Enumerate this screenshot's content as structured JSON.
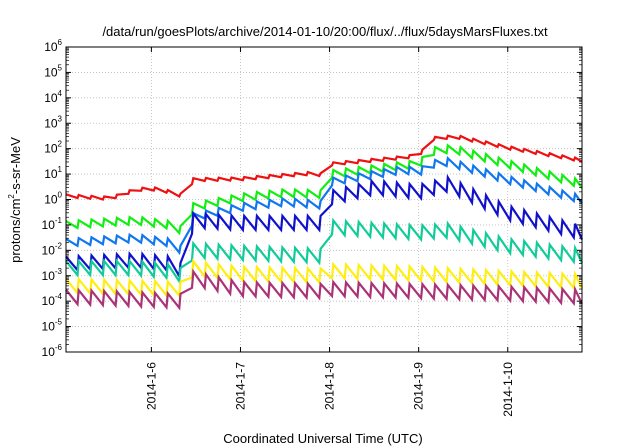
{
  "chart_data": {
    "type": "line",
    "title": "/data/run/goesPlots/archive/2014-01-10/20:00/flux/../flux/5daysMarsFluxes.txt",
    "xlabel": "Coordinated Universal Time (UTC)",
    "ylabel": {
      "base": "protons/cm",
      "exponent": "2",
      "tail": "-s-sr-MeV"
    },
    "y_scale": "log",
    "ylim": [
      1e-06,
      1000000.0
    ],
    "y_ticks": [
      {
        "value": 1e-06,
        "base": "10",
        "exp": "-6"
      },
      {
        "value": 1e-05,
        "base": "10",
        "exp": "-5"
      },
      {
        "value": 0.0001,
        "base": "10",
        "exp": "-4"
      },
      {
        "value": 0.001,
        "base": "10",
        "exp": "-3"
      },
      {
        "value": 0.01,
        "base": "10",
        "exp": "-2"
      },
      {
        "value": 0.1,
        "base": "10",
        "exp": "-1"
      },
      {
        "value": 1,
        "base": "10",
        "exp": "0"
      },
      {
        "value": 10,
        "base": "10",
        "exp": "1"
      },
      {
        "value": 100,
        "base": "10",
        "exp": "2"
      },
      {
        "value": 1000,
        "base": "10",
        "exp": "3"
      },
      {
        "value": 10000.0,
        "base": "10",
        "exp": "4"
      },
      {
        "value": 100000.0,
        "base": "10",
        "exp": "5"
      },
      {
        "value": 1000000.0,
        "base": "10",
        "exp": "6"
      }
    ],
    "xlim": [
      "2014-01-05 01:00",
      "2014-01-10 20:00"
    ],
    "x_ticks": [
      "2014-1-6",
      "2014-1-7",
      "2014-1-8",
      "2014-1-9",
      "2014-1-10"
    ],
    "x_tick_dates": [
      "2014-01-06 00:00",
      "2014-01-07 00:00",
      "2014-01-08 00:00",
      "2014-01-09 00:00",
      "2014-01-10 00:00"
    ],
    "grid": true,
    "legend": "none",
    "sawtooth_periods_per_day": 7,
    "series": [
      {
        "color": "#ee1111",
        "points": [
          [
            "2014-01-05 01:00",
            1.4
          ],
          [
            "2014-01-05 13:00",
            1.1
          ],
          [
            "2014-01-05 20:00",
            2.5
          ],
          [
            "2014-01-06 02:00",
            2.6
          ],
          [
            "2014-01-06 10:00",
            1.2
          ],
          [
            "2014-01-06 10:30",
            0.6
          ],
          [
            "2014-01-06 11:00",
            6
          ],
          [
            "2014-01-07 00:00",
            6.5
          ],
          [
            "2014-01-07 20:00",
            11
          ],
          [
            "2014-01-07 23:00",
            8
          ],
          [
            "2014-01-08 00:30",
            25
          ],
          [
            "2014-01-08 20:00",
            45
          ],
          [
            "2014-01-09 00:00",
            55
          ],
          [
            "2014-01-09 04:00",
            250
          ],
          [
            "2014-01-09 10:00",
            300
          ],
          [
            "2014-01-10 00:00",
            110
          ],
          [
            "2014-01-10 20:00",
            35
          ]
        ]
      },
      {
        "color": "#11ee11",
        "points": [
          [
            "2014-01-05 01:00",
            0.1
          ],
          [
            "2014-01-05 20:00",
            0.15
          ],
          [
            "2014-01-06 05:00",
            0.1
          ],
          [
            "2014-01-06 09:30",
            0.05
          ],
          [
            "2014-01-06 10:30",
            0.03
          ],
          [
            "2014-01-06 11:00",
            0.5
          ],
          [
            "2014-01-07 00:00",
            1.2
          ],
          [
            "2014-01-07 12:00",
            1.8
          ],
          [
            "2014-01-07 23:00",
            1.6
          ],
          [
            "2014-01-08 00:30",
            10
          ],
          [
            "2014-01-08 20:00",
            22
          ],
          [
            "2014-01-09 00:00",
            25
          ],
          [
            "2014-01-09 04:00",
            80
          ],
          [
            "2014-01-09 09:00",
            100
          ],
          [
            "2014-01-10 00:00",
            25
          ],
          [
            "2014-01-10 20:00",
            4
          ]
        ]
      },
      {
        "color": "#1177ee",
        "points": [
          [
            "2014-01-05 01:00",
            0.02
          ],
          [
            "2014-01-05 20:00",
            0.03
          ],
          [
            "2014-01-06 05:00",
            0.02
          ],
          [
            "2014-01-06 10:30",
            0.006
          ],
          [
            "2014-01-06 11:00",
            0.2
          ],
          [
            "2014-01-07 00:00",
            0.5
          ],
          [
            "2014-01-07 12:00",
            0.8
          ],
          [
            "2014-01-07 23:00",
            0.6
          ],
          [
            "2014-01-08 00:30",
            5
          ],
          [
            "2014-01-08 20:00",
            15
          ],
          [
            "2014-01-09 00:00",
            12
          ],
          [
            "2014-01-09 04:00",
            25
          ],
          [
            "2014-01-09 08:00",
            30
          ],
          [
            "2014-01-10 00:00",
            6
          ],
          [
            "2014-01-10 20:00",
            1
          ]
        ]
      },
      {
        "color": "#1111cc",
        "points": [
          [
            "2014-01-05 01:00",
            0.003
          ],
          [
            "2014-01-05 20:00",
            0.004
          ],
          [
            "2014-01-06 05:00",
            0.003
          ],
          [
            "2014-01-06 10:30",
            0.001
          ],
          [
            "2014-01-06 11:00",
            0.15
          ],
          [
            "2014-01-07 00:00",
            0.12
          ],
          [
            "2014-01-07 23:00",
            0.12
          ],
          [
            "2014-01-08 00:30",
            1.2
          ],
          [
            "2014-01-08 12:00",
            3
          ],
          [
            "2014-01-09 00:00",
            2
          ],
          [
            "2014-01-09 08:00",
            4
          ],
          [
            "2014-01-10 00:00",
            0.3
          ],
          [
            "2014-01-10 20:00",
            0.05
          ]
        ]
      },
      {
        "color": "#11cc99",
        "points": [
          [
            "2014-01-05 01:00",
            0.002
          ],
          [
            "2014-01-05 20:00",
            0.002
          ],
          [
            "2014-01-06 05:00",
            0.0015
          ],
          [
            "2014-01-06 10:30",
            0.0008
          ],
          [
            "2014-01-06 11:00",
            0.01
          ],
          [
            "2014-01-07 00:00",
            0.008
          ],
          [
            "2014-01-07 23:00",
            0.006
          ],
          [
            "2014-01-08 00:30",
            0.08
          ],
          [
            "2014-01-09 00:00",
            0.05
          ],
          [
            "2014-01-09 08:00",
            0.06
          ],
          [
            "2014-01-10 00:00",
            0.015
          ],
          [
            "2014-01-10 20:00",
            0.006
          ]
        ]
      },
      {
        "color": "#ffee11",
        "points": [
          [
            "2014-01-05 01:00",
            0.0004
          ],
          [
            "2014-01-06 10:30",
            0.0003
          ],
          [
            "2014-01-06 11:00",
            0.002
          ],
          [
            "2014-01-07 00:00",
            0.0012
          ],
          [
            "2014-01-07 23:00",
            0.001
          ],
          [
            "2014-01-08 00:30",
            0.0015
          ],
          [
            "2014-01-09 00:00",
            0.0012
          ],
          [
            "2014-01-10 00:00",
            0.0008
          ],
          [
            "2014-01-10 20:00",
            0.0006
          ]
        ]
      },
      {
        "color": "#aa3377",
        "points": [
          [
            "2014-01-05 01:00",
            0.00015
          ],
          [
            "2014-01-06 10:30",
            0.0001
          ],
          [
            "2014-01-06 11:00",
            0.0008
          ],
          [
            "2014-01-07 00:00",
            0.0003
          ],
          [
            "2014-01-07 23:00",
            0.00025
          ],
          [
            "2014-01-08 00:30",
            0.0003
          ],
          [
            "2014-01-09 00:00",
            0.00025
          ],
          [
            "2014-01-10 00:00",
            0.0002
          ],
          [
            "2014-01-10 20:00",
            0.00015
          ]
        ]
      }
    ]
  }
}
